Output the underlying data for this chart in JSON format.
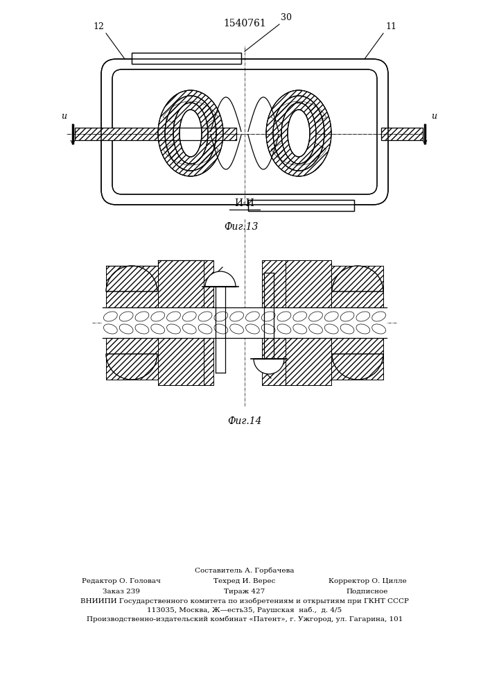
{
  "patent_number": "1540761",
  "fig13_label": "Фиг.13",
  "fig14_label": "Фиг.14",
  "section_label": "И-И",
  "label_30": "30",
  "label_12": "12",
  "label_11": "11",
  "bg_color": "#ffffff",
  "line_color": "#000000",
  "footer_line1": "Составитель А. Горбачева",
  "footer_col1_line1": "Редактор О. Головач",
  "footer_col1_line2": "Заказ 239",
  "footer_col2_line1": "Техред И. Верес",
  "footer_col2_line2": "Тираж 427",
  "footer_col3_line1": "Корректор О. Цилле",
  "footer_col3_line2": "Подписное",
  "footer_vniip1": "ВНИИПИ Государственного комитета по изобретениям и открытиям при ГКНТ СССР",
  "footer_vniip2": "113035, Москва, Ж—есть35, Раушская  наб.,  д. 4/5",
  "footer_vniip3": "Производственно-издательский комбинат «Патент», г. Ужгород, ул. Гагарина, 101"
}
